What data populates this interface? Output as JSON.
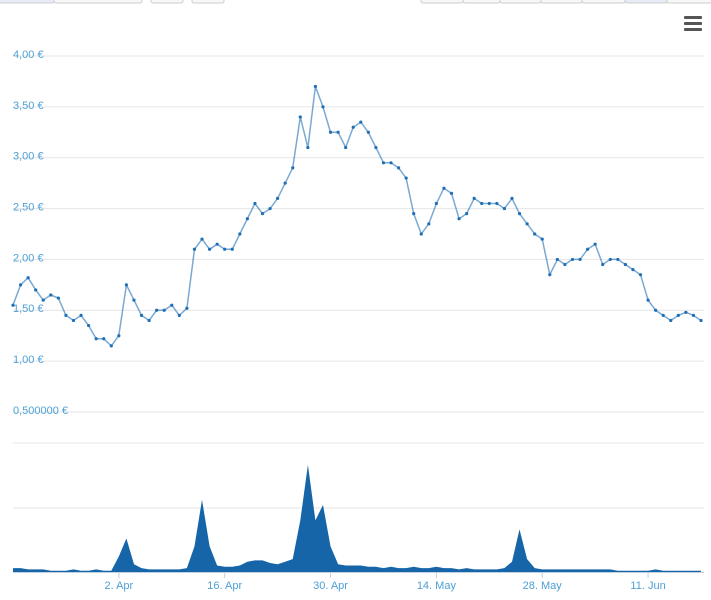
{
  "chart_data": {
    "type": "line",
    "x": [
      "03-19",
      "03-20",
      "03-21",
      "03-22",
      "03-23",
      "03-24",
      "03-25",
      "03-26",
      "03-27",
      "03-28",
      "03-29",
      "03-30",
      "03-31",
      "04-01",
      "04-02",
      "04-03",
      "04-04",
      "04-05",
      "04-06",
      "04-07",
      "04-08",
      "04-09",
      "04-10",
      "04-11",
      "04-12",
      "04-13",
      "04-14",
      "04-15",
      "04-16",
      "04-17",
      "04-18",
      "04-19",
      "04-20",
      "04-21",
      "04-22",
      "04-23",
      "04-24",
      "04-25",
      "04-26",
      "04-27",
      "04-28",
      "04-29",
      "04-30",
      "05-01",
      "05-02",
      "05-03",
      "05-04",
      "05-05",
      "05-06",
      "05-07",
      "05-08",
      "05-09",
      "05-10",
      "05-11",
      "05-12",
      "05-13",
      "05-14",
      "05-15",
      "05-16",
      "05-17",
      "05-18",
      "05-19",
      "05-20",
      "05-21",
      "05-22",
      "05-23",
      "05-24",
      "05-25",
      "05-26",
      "05-27",
      "05-28",
      "05-29",
      "05-30",
      "05-31",
      "06-01",
      "06-02",
      "06-03",
      "06-04",
      "06-05",
      "06-06",
      "06-07",
      "06-08",
      "06-09",
      "06-10",
      "06-11",
      "06-12",
      "06-13",
      "06-14",
      "06-15",
      "06-16",
      "06-17",
      "06-18"
    ],
    "xlim": [
      "03-19",
      "06-18"
    ],
    "xticks": [
      {
        "value": "04-02",
        "label": "2. Apr"
      },
      {
        "value": "04-16",
        "label": "16. Apr"
      },
      {
        "value": "04-30",
        "label": "30. Apr"
      },
      {
        "value": "05-14",
        "label": "14. May"
      },
      {
        "value": "05-28",
        "label": "28. May"
      },
      {
        "value": "06-11",
        "label": "11. Jun"
      }
    ],
    "ylim": [
      0.5,
      4.0
    ],
    "yticks": [
      {
        "value": 0.5,
        "label": "0,500000 €"
      },
      {
        "value": 1,
        "label": "1,00 €"
      },
      {
        "value": 1.5,
        "label": "1,50 €"
      },
      {
        "value": 2,
        "label": "2,00 €"
      },
      {
        "value": 2.5,
        "label": "2,50 €"
      },
      {
        "value": 3,
        "label": "3,00 €"
      },
      {
        "value": 3.5,
        "label": "3,50 €"
      },
      {
        "value": 4,
        "label": "4,00 €"
      }
    ],
    "y2lim": [
      0,
      100
    ],
    "grid": true,
    "series": [
      {
        "color": "#1f6fb5",
        "values": [
          1.55,
          1.75,
          1.82,
          1.7,
          1.6,
          1.65,
          1.62,
          1.45,
          1.4,
          1.45,
          1.35,
          1.22,
          1.22,
          1.15,
          1.25,
          1.75,
          1.6,
          1.45,
          1.4,
          1.5,
          1.5,
          1.55,
          1.45,
          1.52,
          2.1,
          2.2,
          2.1,
          2.15,
          2.1,
          2.1,
          2.25,
          2.4,
          2.55,
          2.45,
          2.5,
          2.6,
          2.75,
          2.9,
          3.4,
          3.1,
          3.7,
          3.5,
          3.25,
          3.25,
          3.1,
          3.3,
          3.35,
          3.25,
          3.1,
          2.95,
          2.95,
          2.9,
          2.8,
          2.45,
          2.25,
          2.35,
          2.55,
          2.7,
          2.65,
          2.4,
          2.45,
          2.6,
          2.55,
          2.55,
          2.55,
          2.5,
          2.6,
          2.45,
          2.35,
          2.25,
          2.2,
          1.85,
          2.0,
          1.95,
          2.0,
          2.0,
          2.1,
          2.15,
          1.95,
          2.0,
          2.0,
          1.95,
          1.9,
          1.85,
          1.6,
          1.5,
          1.45,
          1.4,
          1.45,
          1.48,
          1.45,
          1.4
        ]
      },
      {
        "type": "area",
        "axis": "y2",
        "color": "#1565a8",
        "values": [
          3,
          3,
          2,
          2,
          2,
          1,
          1,
          1,
          2,
          1,
          1,
          2,
          1,
          1,
          12,
          26,
          6,
          3,
          2,
          2,
          2,
          2,
          2,
          3,
          20,
          56,
          20,
          5,
          4,
          4,
          5,
          8,
          9,
          9,
          7,
          6,
          8,
          10,
          40,
          83,
          40,
          52,
          20,
          6,
          5,
          5,
          5,
          4,
          4,
          3,
          4,
          3,
          3,
          4,
          3,
          3,
          4,
          3,
          3,
          2,
          3,
          2,
          2,
          2,
          2,
          3,
          8,
          33,
          10,
          3,
          2,
          2,
          2,
          2,
          2,
          2,
          2,
          2,
          2,
          2,
          1,
          1,
          1,
          1,
          1,
          2,
          1,
          1,
          1,
          1,
          1,
          1
        ]
      }
    ]
  }
}
